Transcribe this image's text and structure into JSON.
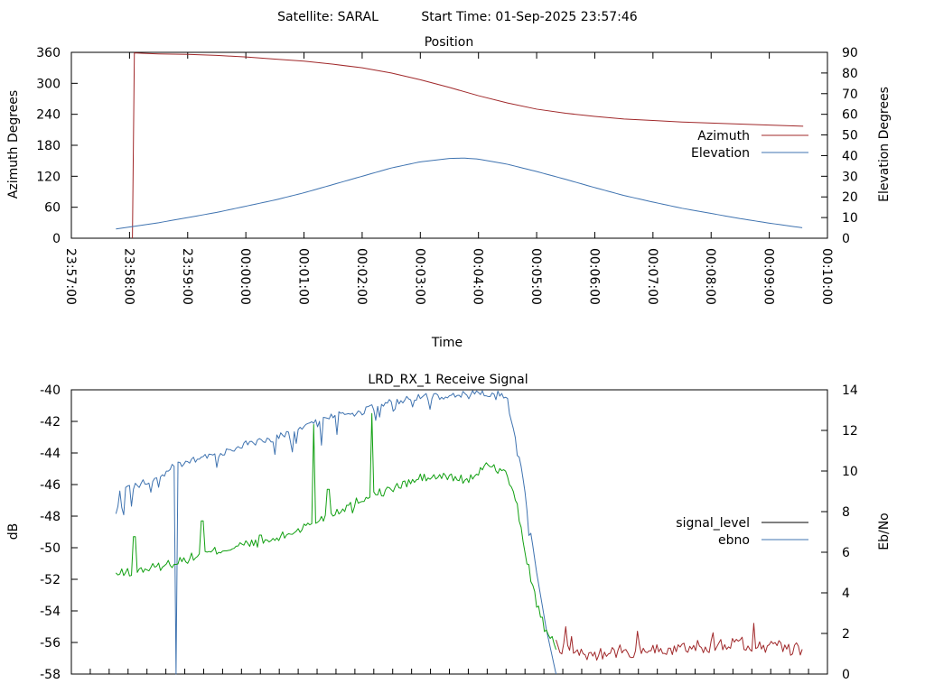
{
  "header": {
    "satellite_label": "Satellite: SARAL",
    "start_time_label": "Start Time: 01-Sep-2025 23:57:46"
  },
  "colors": {
    "red": "#a0282a",
    "blue": "#3f73b0",
    "green": "#12a012",
    "black": "#000000"
  },
  "chart_data": [
    {
      "type": "line",
      "title": "Position",
      "xlabel": "Time",
      "ylabel": "Azimuth Degrees",
      "y2label": "Elevation Degrees",
      "x_range": [
        "23:57:00",
        "00:10:00"
      ],
      "x_ticks": [
        "23:57:00",
        "23:58:00",
        "23:59:00",
        "00:00:00",
        "00:01:00",
        "00:02:00",
        "00:03:00",
        "00:04:00",
        "00:05:00",
        "00:06:00",
        "00:07:00",
        "00:08:00",
        "00:09:00",
        "00:10:00"
      ],
      "ylim": [
        0,
        360
      ],
      "y_ticks": [
        0,
        60,
        120,
        180,
        240,
        300,
        360
      ],
      "y2lim": [
        0,
        90
      ],
      "y2_ticks": [
        0,
        10,
        20,
        30,
        40,
        50,
        60,
        70,
        80,
        90
      ],
      "legend_position": "right",
      "series": [
        {
          "name": "Azimuth",
          "axis": "y",
          "color": "#a0282a",
          "x": [
            "23:58:03",
            "23:58:04",
            "23:58:05",
            "23:58:15",
            "23:58:30",
            "23:59:00",
            "23:59:30",
            "00:00:00",
            "00:00:30",
            "00:01:00",
            "00:01:30",
            "00:02:00",
            "00:02:30",
            "00:03:00",
            "00:03:30",
            "00:04:00",
            "00:04:30",
            "00:05:00",
            "00:05:30",
            "00:06:00",
            "00:06:30",
            "00:07:00",
            "00:07:30",
            "00:08:00",
            "00:08:30",
            "00:09:00",
            "00:09:35"
          ],
          "y": [
            0,
            180,
            359,
            358,
            357,
            356,
            354,
            351,
            347,
            343,
            337,
            330,
            320,
            307,
            292,
            276,
            262,
            250,
            242,
            236,
            231,
            228,
            225,
            223,
            221,
            219,
            217
          ]
        },
        {
          "name": "Elevation",
          "axis": "y2",
          "color": "#3f73b0",
          "x": [
            "23:57:46",
            "23:58:30",
            "23:59:00",
            "23:59:30",
            "00:00:00",
            "00:00:30",
            "00:01:00",
            "00:01:30",
            "00:02:00",
            "00:02:30",
            "00:03:00",
            "00:03:30",
            "00:03:45",
            "00:04:00",
            "00:04:30",
            "00:05:00",
            "00:05:30",
            "00:06:00",
            "00:06:30",
            "00:07:00",
            "00:07:30",
            "00:08:00",
            "00:08:30",
            "00:09:00",
            "00:09:35"
          ],
          "y": [
            4.5,
            7.5,
            10,
            12.5,
            15.5,
            18.5,
            22,
            26,
            30,
            34,
            37,
            38.6,
            38.8,
            38.3,
            35.8,
            32.3,
            28.5,
            24.5,
            20.7,
            17.5,
            14.5,
            12,
            9.5,
            7.3,
            5
          ]
        }
      ]
    },
    {
      "type": "line",
      "title": "LRD_RX_1 Receive Signal",
      "ylabel": "dB",
      "y2label": "Eb/No",
      "ylim": [
        -58,
        -40
      ],
      "y_ticks": [
        -58,
        -56,
        -54,
        -52,
        -50,
        -48,
        -46,
        -44,
        -42,
        -40
      ],
      "y2lim": [
        0,
        14
      ],
      "y2_ticks": [
        0,
        2,
        4,
        6,
        8,
        10,
        12,
        14
      ],
      "x_range": [
        "23:57:00",
        "00:10:00"
      ],
      "x_tick_count": 40,
      "legend_position": "right",
      "series": [
        {
          "name": "signal_level",
          "axis": "y",
          "color": "#000000",
          "x": [
            "23:57:46",
            "23:58:30",
            "23:59:00",
            "23:59:30",
            "00:00:00",
            "00:00:30",
            "00:01:00",
            "00:01:30",
            "00:02:00",
            "00:02:30",
            "00:03:00",
            "00:03:30",
            "00:03:45",
            "00:04:00",
            "00:04:07",
            "00:04:12",
            "00:04:20",
            "00:04:30",
            "00:04:40",
            "00:04:50",
            "00:05:00",
            "00:05:10",
            "00:05:20",
            "00:05:30",
            "00:06:00",
            "00:06:30",
            "00:07:00",
            "00:07:30",
            "00:08:00",
            "00:08:30",
            "00:09:00",
            "00:09:35"
          ],
          "y": [
            -51.7,
            -51.2,
            -50.7,
            -50.2,
            -49.8,
            -49.5,
            -48.7,
            -47.8,
            -46.9,
            -46.3,
            -45.6,
            -45.5,
            -45.7,
            -45.5,
            -44.5,
            -44.8,
            -45.0,
            -45.4,
            -47.5,
            -50.8,
            -53.5,
            -55.5,
            -56.2,
            -56.5,
            -56.8,
            -56.5,
            -56.6,
            -56.3,
            -56.2,
            -56.1,
            -56.2,
            -56.5
          ]
        },
        {
          "name": "ebno",
          "axis": "y2",
          "color": "#3f73b0",
          "x": [
            "23:57:46",
            "23:57:50",
            "23:58:00",
            "23:58:15",
            "23:58:30",
            "23:58:40",
            "23:58:45",
            "23:59:00",
            "23:59:30",
            "00:00:00",
            "00:00:30",
            "00:01:00",
            "00:01:30",
            "00:02:00",
            "00:02:30",
            "00:03:00",
            "00:03:30",
            "00:03:45",
            "00:04:00",
            "00:04:20",
            "00:04:30",
            "00:04:45",
            "00:05:00",
            "00:05:10",
            "00:05:20"
          ],
          "y": [
            8,
            9.2,
            9.3,
            9.6,
            9.8,
            10.2,
            10.4,
            10.6,
            11,
            11.5,
            11.8,
            12.3,
            12.9,
            13.1,
            13.6,
            13.8,
            13.9,
            14,
            14,
            14,
            13.6,
            10.0,
            5.0,
            2.2,
            0
          ]
        }
      ]
    }
  ]
}
